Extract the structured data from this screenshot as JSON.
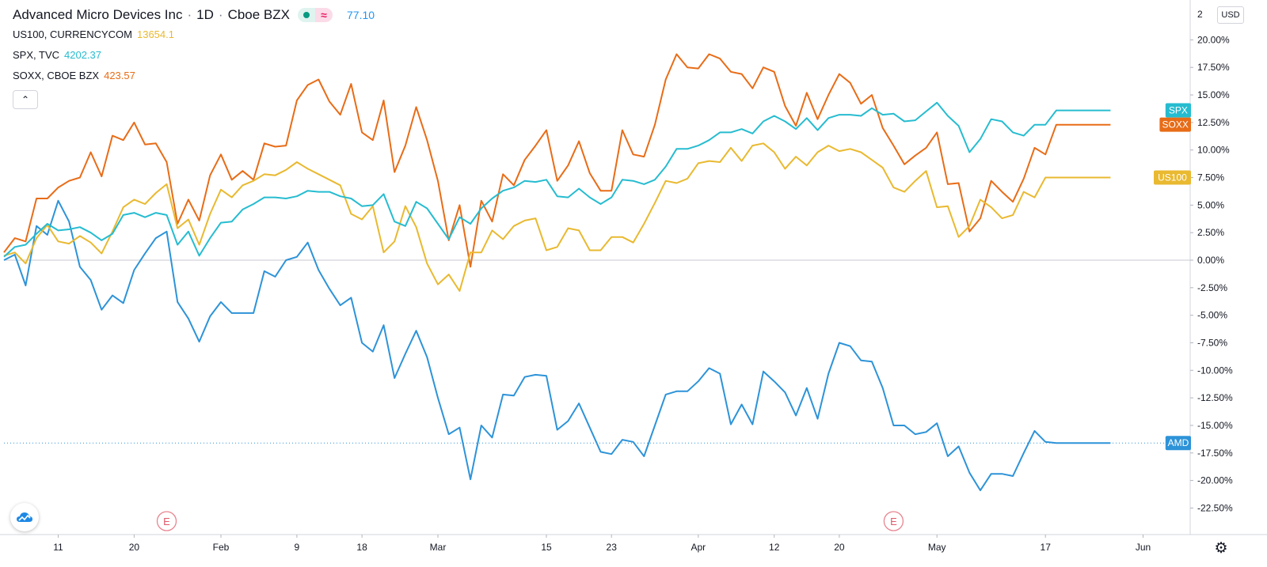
{
  "header": {
    "main_symbol": "Advanced Micro Devices Inc",
    "interval": "1D",
    "exchange": "Cboe BZX",
    "approx_glyph": "≈",
    "main_value": "77.10",
    "collapse_glyph": "⌃"
  },
  "compare": [
    {
      "label": "US100, CURRENCYCOM",
      "value": "13654.1",
      "color": "#e9b930"
    },
    {
      "label": "SPX, TVC",
      "value": "4202.37",
      "color": "#26bcd0"
    },
    {
      "label": "SOXX, CBOE BZX",
      "value": "423.57",
      "color": "#e86c17"
    }
  ],
  "toolbar": {
    "currency": "USD",
    "settings_icon": "gear-icon",
    "logo_icon": "cloud-chart-icon"
  },
  "chart_data": {
    "type": "line",
    "y_unit": "%",
    "y_ticks": [
      "20.00%",
      "17.50%",
      "15.00%",
      "12.50%",
      "10.00%",
      "7.50%",
      "5.00%",
      "2.50%",
      "0.00%",
      "-2.50%",
      "-5.00%",
      "-7.50%",
      "-10.00%",
      "-12.50%",
      "-15.00%",
      "-17.50%",
      "-20.00%",
      "-22.50%"
    ],
    "y_tick_values": [
      20,
      17.5,
      15,
      12.5,
      10,
      7.5,
      5,
      2.5,
      0,
      -2.5,
      -5,
      -7.5,
      -10,
      -12.5,
      -15,
      -17.5,
      -20,
      -22.5
    ],
    "top_tick_partial": "2",
    "ylim": [
      -23.5,
      22.2
    ],
    "x_ticks": [
      {
        "label": "11",
        "i": 5
      },
      {
        "label": "20",
        "i": 12
      },
      {
        "label": "Feb",
        "i": 20
      },
      {
        "label": "9",
        "i": 27
      },
      {
        "label": "18",
        "i": 33
      },
      {
        "label": "Mar",
        "i": 40
      },
      {
        "label": "15",
        "i": 50
      },
      {
        "label": "23",
        "i": 56
      },
      {
        "label": "Apr",
        "i": 64
      },
      {
        "label": "12",
        "i": 71
      },
      {
        "label": "20",
        "i": 77
      },
      {
        "label": "May",
        "i": 86
      },
      {
        "label": "17",
        "i": 96
      },
      {
        "label": "Jun",
        "i": 105
      }
    ],
    "x_count": 103,
    "earnings_markers": [
      {
        "label": "E",
        "i": 15
      },
      {
        "label": "E",
        "i": 82
      }
    ],
    "series": [
      {
        "name": "AMD",
        "color": "#2d93d8",
        "tag": "AMD",
        "values": [
          0,
          0.5,
          -2.3,
          3.1,
          2.3,
          5.4,
          3.5,
          -0.6,
          -1.8,
          -4.5,
          -3.2,
          -3.9,
          -0.9,
          0.6,
          2.0,
          2.6,
          -3.8,
          -5.3,
          -7.4,
          -5.1,
          -3.8,
          -4.8,
          -4.8,
          -4.8,
          -1.0,
          -1.5,
          0.0,
          0.3,
          1.6,
          -0.9,
          -2.6,
          -4.1,
          -3.4,
          -7.5,
          -8.3,
          -5.9,
          -10.7,
          -8.5,
          -6.4,
          -8.8,
          -12.5,
          -15.8,
          -15.2,
          -19.9,
          -15.0,
          -16.1,
          -12.2,
          -12.3,
          -10.6,
          -10.4,
          -10.5,
          -15.4,
          -14.6,
          -13.0,
          -15.2,
          -17.4,
          -17.6,
          -16.3,
          -16.5,
          -17.8,
          -15.0,
          -12.2,
          -11.9,
          -11.9,
          -11.0,
          -9.8,
          -10.3,
          -14.9,
          -13.1,
          -14.9,
          -10.1,
          -11.0,
          -12.0,
          -14.1,
          -11.6,
          -14.4,
          -10.3,
          -7.5,
          -7.8,
          -9.1,
          -9.2,
          -11.6,
          -15.0,
          -15.0,
          -15.8,
          -15.6,
          -14.8,
          -17.8,
          -16.9,
          -19.3,
          -20.9,
          -19.4,
          -19.4,
          -19.6,
          -17.5,
          -15.5,
          -16.5,
          -16.6,
          -16.6,
          -16.6,
          -16.6,
          -16.6,
          -16.6
        ]
      },
      {
        "name": "SOXX",
        "color": "#e86c17",
        "tag": "SOXX",
        "values": [
          0.7,
          2.0,
          1.7,
          5.6,
          5.6,
          6.6,
          7.2,
          7.5,
          9.8,
          7.6,
          11.3,
          10.9,
          12.5,
          10.5,
          10.6,
          8.9,
          3.3,
          5.5,
          3.6,
          7.7,
          9.6,
          7.3,
          8.1,
          7.3,
          10.6,
          10.3,
          10.4,
          14.5,
          15.9,
          16.4,
          14.4,
          13.2,
          16.0,
          11.6,
          10.9,
          14.5,
          8.0,
          10.4,
          13.9,
          10.9,
          7.2,
          1.8,
          5.0,
          -0.6,
          5.4,
          3.5,
          7.8,
          6.8,
          9.1,
          10.4,
          11.8,
          7.2,
          8.6,
          10.8,
          7.9,
          6.3,
          6.3,
          11.8,
          9.6,
          9.4,
          12.3,
          16.4,
          18.7,
          17.5,
          17.4,
          18.7,
          18.3,
          17.1,
          16.9,
          15.6,
          17.5,
          17.1,
          14.0,
          12.2,
          15.2,
          12.8,
          15.0,
          16.9,
          16.1,
          14.2,
          15.0,
          12.0,
          10.4,
          8.7,
          9.5,
          10.2,
          11.6,
          6.9,
          7.0,
          2.6,
          3.8,
          7.2,
          6.2,
          5.3,
          7.4,
          10.2,
          9.6,
          12.3,
          12.3,
          12.3,
          12.3,
          12.3,
          12.3
        ]
      },
      {
        "name": "US100",
        "color": "#e9b930",
        "tag": "US100",
        "values": [
          0.4,
          0.7,
          -0.3,
          2.0,
          3.2,
          1.7,
          1.5,
          2.2,
          1.6,
          0.6,
          2.6,
          4.8,
          5.5,
          5.1,
          6.1,
          6.9,
          2.9,
          3.7,
          1.4,
          4.2,
          6.4,
          5.7,
          6.8,
          7.2,
          7.8,
          7.7,
          8.2,
          8.9,
          8.3,
          7.8,
          7.3,
          6.8,
          4.2,
          3.7,
          4.9,
          0.7,
          1.7,
          4.9,
          3.0,
          -0.3,
          -2.2,
          -1.3,
          -2.8,
          0.7,
          0.7,
          2.7,
          1.9,
          3.1,
          3.6,
          3.8,
          0.9,
          1.2,
          2.9,
          2.7,
          0.9,
          0.9,
          2.1,
          2.1,
          1.6,
          3.3,
          5.2,
          7.2,
          7.0,
          7.4,
          8.8,
          9.0,
          8.9,
          10.2,
          9.0,
          10.4,
          10.6,
          9.8,
          8.3,
          9.4,
          8.6,
          9.8,
          10.4,
          9.9,
          10.1,
          9.8,
          9.1,
          8.4,
          6.6,
          6.2,
          7.2,
          8.1,
          4.8,
          4.9,
          2.1,
          3.1,
          5.5,
          4.8,
          3.8,
          4.1,
          6.2,
          5.7,
          7.5,
          7.5,
          7.5,
          7.5,
          7.5,
          7.5,
          7.5
        ]
      },
      {
        "name": "SPX",
        "color": "#26bcd0",
        "tag": "SPX",
        "values": [
          0.3,
          1.2,
          1.4,
          2.4,
          3.3,
          2.7,
          2.8,
          3.0,
          2.5,
          1.8,
          2.4,
          4.1,
          4.3,
          3.9,
          4.3,
          4.1,
          1.4,
          2.6,
          0.4,
          2.0,
          3.4,
          3.5,
          4.6,
          5.1,
          5.7,
          5.7,
          5.6,
          5.8,
          6.3,
          6.2,
          6.2,
          5.8,
          5.6,
          4.9,
          5.0,
          6.0,
          3.5,
          3.1,
          5.3,
          4.7,
          3.3,
          1.9,
          3.9,
          3.3,
          4.7,
          5.6,
          6.3,
          6.6,
          7.2,
          7.1,
          7.3,
          5.8,
          5.7,
          6.5,
          5.7,
          5.1,
          5.7,
          7.3,
          7.2,
          6.9,
          7.3,
          8.5,
          10.1,
          10.1,
          10.4,
          10.9,
          11.6,
          11.6,
          11.9,
          11.5,
          12.6,
          13.1,
          12.6,
          11.9,
          12.9,
          11.8,
          12.9,
          13.2,
          13.2,
          13.1,
          13.8,
          13.2,
          13.3,
          12.6,
          12.7,
          13.5,
          14.3,
          13.1,
          12.2,
          9.8,
          11.0,
          12.8,
          12.6,
          11.6,
          11.3,
          12.3,
          12.3,
          13.6,
          13.6,
          13.6,
          13.6,
          13.6,
          13.6
        ]
      }
    ]
  }
}
